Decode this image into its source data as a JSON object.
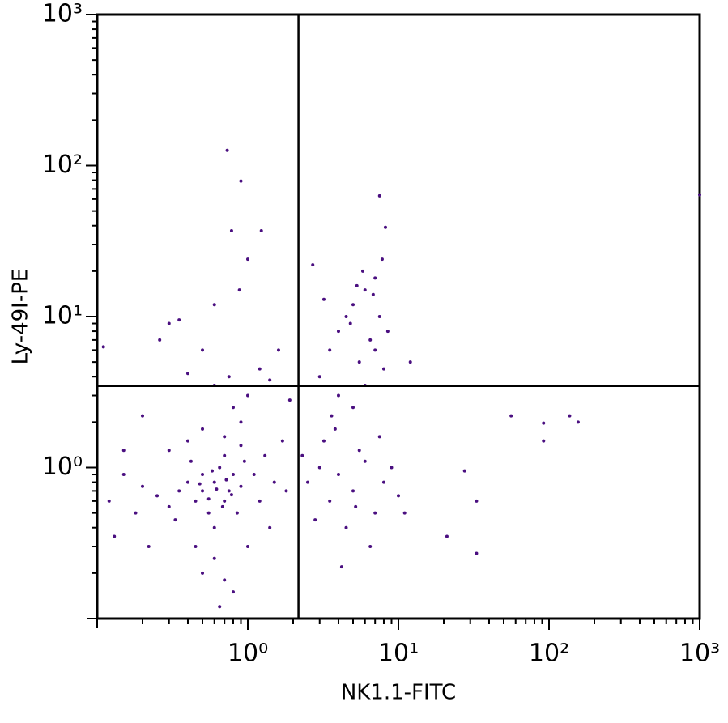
{
  "chart_data": {
    "type": "scatter",
    "x_label": "NK1.1-FITC",
    "y_label": "Ly-49I-PE",
    "xscale": "log",
    "yscale": "log",
    "xlim": [
      0.1,
      1000
    ],
    "ylim": [
      0.1,
      1000
    ],
    "xticks": [
      {
        "value": 1,
        "label": "10⁰"
      },
      {
        "value": 10,
        "label": "10¹"
      },
      {
        "value": 100,
        "label": "10²"
      },
      {
        "value": 1000,
        "label": "10³"
      }
    ],
    "yticks": [
      {
        "value": 1,
        "label": "10⁰"
      },
      {
        "value": 10,
        "label": "10¹"
      },
      {
        "value": 100,
        "label": "10²"
      },
      {
        "value": 1000,
        "label": "10³"
      }
    ],
    "quadrant_gates": {
      "x": 2.17,
      "y": 3.47,
      "color": "#000000"
    },
    "color": "#4a0f80",
    "x": [
      0.5,
      0.6,
      0.7,
      0.8,
      0.55,
      0.65,
      0.75,
      0.45,
      0.9,
      0.6,
      0.7,
      0.5,
      0.4,
      0.85,
      0.95,
      0.35,
      0.3,
      0.25,
      0.2,
      0.18,
      0.15,
      0.12,
      0.13,
      0.22,
      0.3,
      0.4,
      0.5,
      0.7,
      0.9,
      1.1,
      1.2,
      1.3,
      1.5,
      0.6,
      0.7,
      0.65,
      0.8,
      0.5,
      0.45,
      1.0,
      1.4,
      1.8,
      1.7,
      0.9,
      0.8,
      1.0,
      0.6,
      0.75,
      0.4,
      1.2,
      0.3,
      0.35,
      0.26,
      0.5,
      0.88,
      0.6,
      1.6,
      1.4,
      0.2,
      0.15,
      1.9,
      0.33,
      0.55,
      0.72,
      0.62,
      0.48,
      0.68,
      0.78,
      0.58,
      0.42,
      2.5,
      3,
      3.5,
      4,
      5,
      6,
      7,
      8,
      4.5,
      3.2,
      5.5,
      6.5,
      2.8,
      9,
      4.2,
      3.8,
      7.5,
      5.2,
      2.3,
      10,
      3,
      3.5,
      4,
      4.5,
      5,
      5.5,
      6,
      6.5,
      7,
      7.5,
      8,
      4,
      5,
      6,
      7,
      8.5,
      3.2,
      5.8,
      6.8,
      4.8,
      7.8,
      2.7,
      3.6,
      5.3,
      12,
      0.73,
      0.9,
      7.5,
      8.2,
      0.78,
      1.23,
      1.0,
      11,
      56,
      92,
      92,
      137,
      156,
      33,
      33,
      21,
      0.11,
      1000,
      27.5
    ],
    "y": [
      0.7,
      0.8,
      0.6,
      0.9,
      0.5,
      1.0,
      0.7,
      0.6,
      0.75,
      0.4,
      1.2,
      0.9,
      0.8,
      0.5,
      1.1,
      0.7,
      0.55,
      0.65,
      0.75,
      0.5,
      0.9,
      0.6,
      0.35,
      0.3,
      1.3,
      1.5,
      1.8,
      1.6,
      1.4,
      0.9,
      0.6,
      1.2,
      0.8,
      0.25,
      0.18,
      0.12,
      0.15,
      0.2,
      0.3,
      0.3,
      0.4,
      0.7,
      1.5,
      2.0,
      2.5,
      3.0,
      3.5,
      4.0,
      4.2,
      4.5,
      9,
      9.5,
      7,
      6,
      15,
      12,
      6,
      3.8,
      2.2,
      1.3,
      2.8,
      0.45,
      0.62,
      0.83,
      0.72,
      0.78,
      0.55,
      0.66,
      0.95,
      1.1,
      0.8,
      1.0,
      0.6,
      0.9,
      0.7,
      1.1,
      0.5,
      0.8,
      0.4,
      1.5,
      1.3,
      0.3,
      0.45,
      1.0,
      0.22,
      1.8,
      1.6,
      0.55,
      1.2,
      0.65,
      4,
      6,
      8,
      10,
      12,
      5,
      15,
      7,
      18,
      10,
      4.5,
      3,
      2.5,
      3.5,
      6,
      8,
      13,
      20,
      14,
      9,
      24,
      22,
      2.2,
      16,
      5,
      126,
      79,
      63,
      39,
      37,
      37,
      24,
      0.5,
      2.2,
      1.97,
      1.5,
      2.2,
      2.0,
      0.6,
      0.27,
      0.35,
      6.3,
      64,
      0.95
    ]
  }
}
